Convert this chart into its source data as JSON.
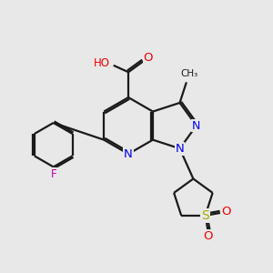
{
  "bg_color": "#e8e8e8",
  "bond_color": "#1a1a1a",
  "n_color": "#0000ee",
  "o_color": "#ee0000",
  "f_color": "#bb00bb",
  "s_color": "#aaaa00",
  "lw": 1.6,
  "fs": 8.5,
  "xlim": [
    0,
    10
  ],
  "ylim": [
    0,
    10
  ]
}
